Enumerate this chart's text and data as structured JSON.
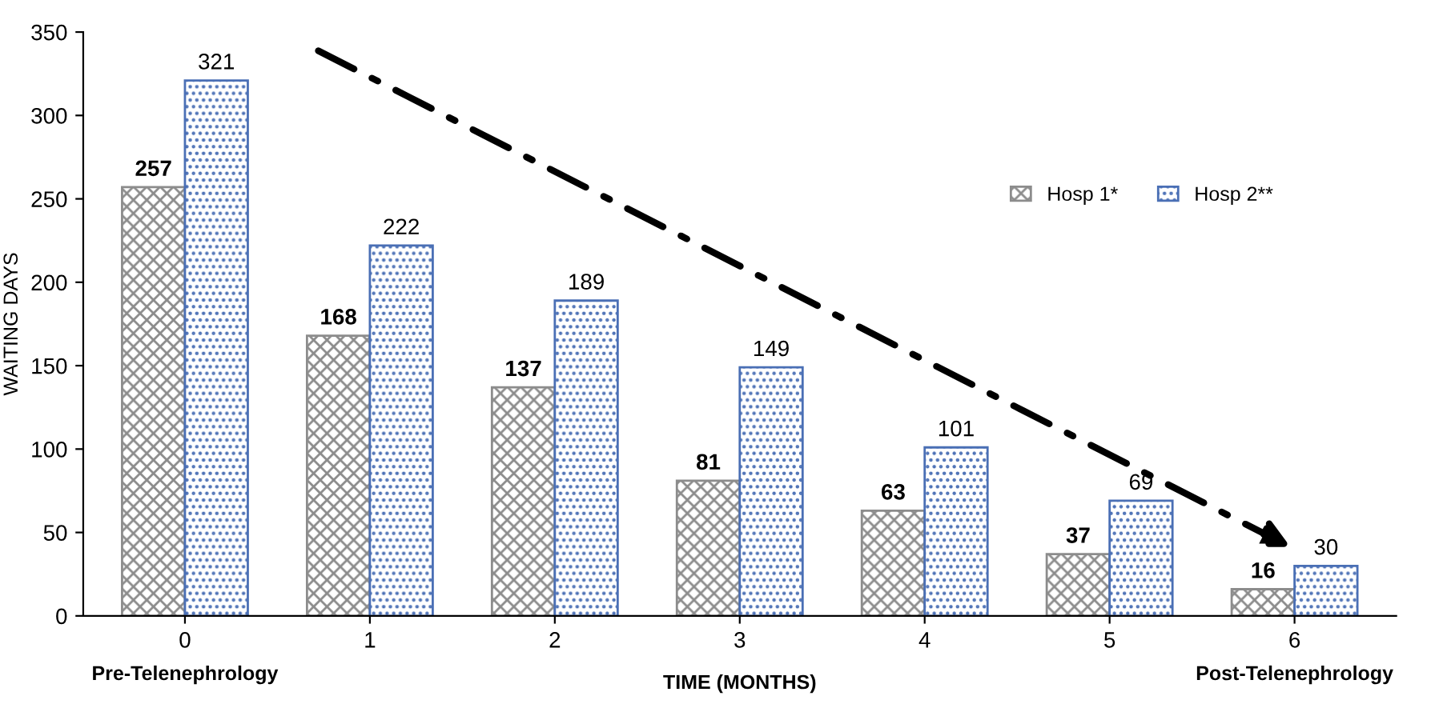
{
  "chart_data": {
    "type": "bar",
    "categories": [
      "0",
      "1",
      "2",
      "3",
      "4",
      "5",
      "6"
    ],
    "series": [
      {
        "name": "Hosp 1*",
        "color": "#8c8c8c",
        "values": [
          257,
          168,
          137,
          81,
          63,
          37,
          16
        ]
      },
      {
        "name": "Hosp 2**",
        "color": "#4a6fb5",
        "values": [
          321,
          222,
          189,
          149,
          101,
          69,
          30
        ]
      }
    ],
    "xlabel": "TIME (MONTHS)",
    "ylabel": "WAITING DAYS",
    "ylim": [
      0,
      350
    ],
    "yticks": [
      0,
      50,
      100,
      150,
      200,
      250,
      300,
      350
    ],
    "data_labels": true,
    "legend": "right",
    "grid": false,
    "annotations": [
      "Pre-Telenephrology",
      "Post-Telenephrology"
    ]
  }
}
